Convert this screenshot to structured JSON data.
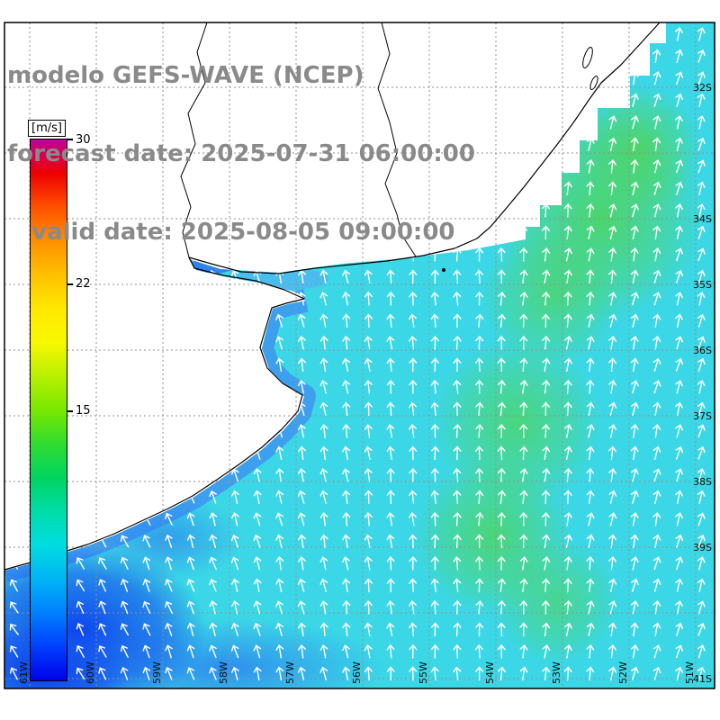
{
  "header": {
    "model_line": "modelo GEFS-WAVE (NCEP)",
    "forecast_line": "forecast date: 2025-07-31 06:00:00",
    "valid_line": "   valid date: 2025-08-05 09:00:00"
  },
  "colorbar": {
    "unit_label": "[m/s]",
    "min": 0,
    "max": 30,
    "ticks": {
      "top": "30",
      "mid": "22",
      "low": "15"
    },
    "gradient": [
      "#c0009c",
      "#ee0000",
      "#ff5000",
      "#ff9000",
      "#ffc000",
      "#ffe800",
      "#f8f800",
      "#b8f000",
      "#78e800",
      "#30dc30",
      "#00d460",
      "#00dca8",
      "#00dce0",
      "#00b4f4",
      "#0080ff",
      "#0040ff",
      "#0000e8"
    ]
  },
  "axes": {
    "right": [
      "32S",
      "34S",
      "35S",
      "36S",
      "37S",
      "38S",
      "39S",
      "41S"
    ],
    "bottom": [
      "61W",
      "60W",
      "59W",
      "58W",
      "57W",
      "56W",
      "55W",
      "54W",
      "53W",
      "52W",
      "51W"
    ]
  },
  "map": {
    "ocean_color": "#3bd7e6",
    "land_color": "#ffffff",
    "arrow_color": "#ffffff",
    "grid_color": "#909090",
    "coast_color": "#000000",
    "high_wind_patch_color": "#4fd45e",
    "low_wind_patch_color": "#0a3cf0"
  }
}
